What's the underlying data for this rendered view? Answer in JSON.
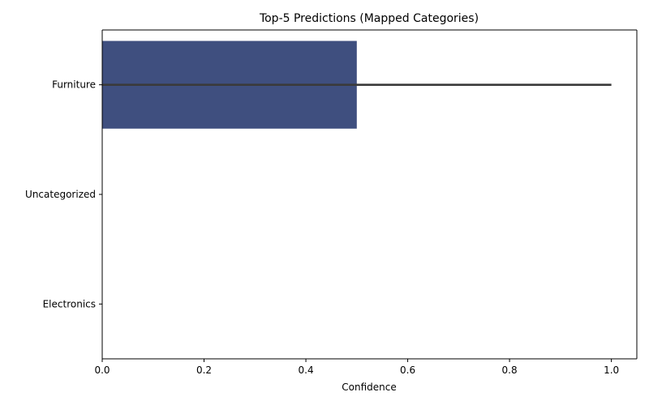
{
  "chart_data": {
    "type": "bar",
    "orientation": "horizontal",
    "title": "Top-5 Predictions (Mapped Categories)",
    "xlabel": "Confidence",
    "ylabel": "",
    "categories": [
      "Furniture",
      "Uncategorized",
      "Electronics"
    ],
    "values": [
      0.5,
      0.0,
      0.0
    ],
    "error_bars": [
      {
        "category": "Furniture",
        "low": 0.0,
        "high": 1.0
      }
    ],
    "xlim": [
      0,
      1.05
    ],
    "x_ticks": [
      0.0,
      0.2,
      0.4,
      0.6,
      0.8,
      1.0
    ],
    "x_tick_labels": [
      "0.0",
      "0.2",
      "0.4",
      "0.6",
      "0.8",
      "1.0"
    ],
    "grid": false,
    "legend": "none",
    "colors": {
      "bar": "#3f4f7f",
      "error_bar": "#3a3a3a",
      "axis": "#000000"
    }
  }
}
